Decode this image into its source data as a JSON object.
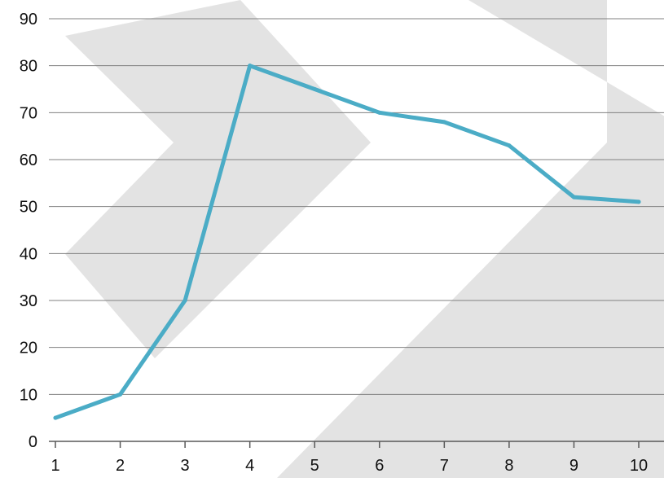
{
  "chart_data": {
    "type": "line",
    "x": [
      1,
      2,
      3,
      4,
      5,
      6,
      7,
      8,
      9,
      10
    ],
    "series": [
      {
        "values": [
          5,
          10,
          30,
          80,
          75,
          70,
          68,
          63,
          52,
          51
        ],
        "color": "#4bacc6"
      }
    ],
    "xlim": [
      1,
      10
    ],
    "ylim": [
      0,
      90
    ],
    "x_ticks": [
      "1",
      "2",
      "3",
      "4",
      "5",
      "6",
      "7",
      "8",
      "9",
      "10"
    ],
    "y_ticks": [
      "0",
      "10",
      "20",
      "30",
      "40",
      "50",
      "60",
      "70",
      "80",
      "90"
    ],
    "grid": true,
    "gridline_color": "#808080",
    "watermark_color": "#e3e3e3",
    "title": "",
    "xlabel": "",
    "ylabel": ""
  }
}
